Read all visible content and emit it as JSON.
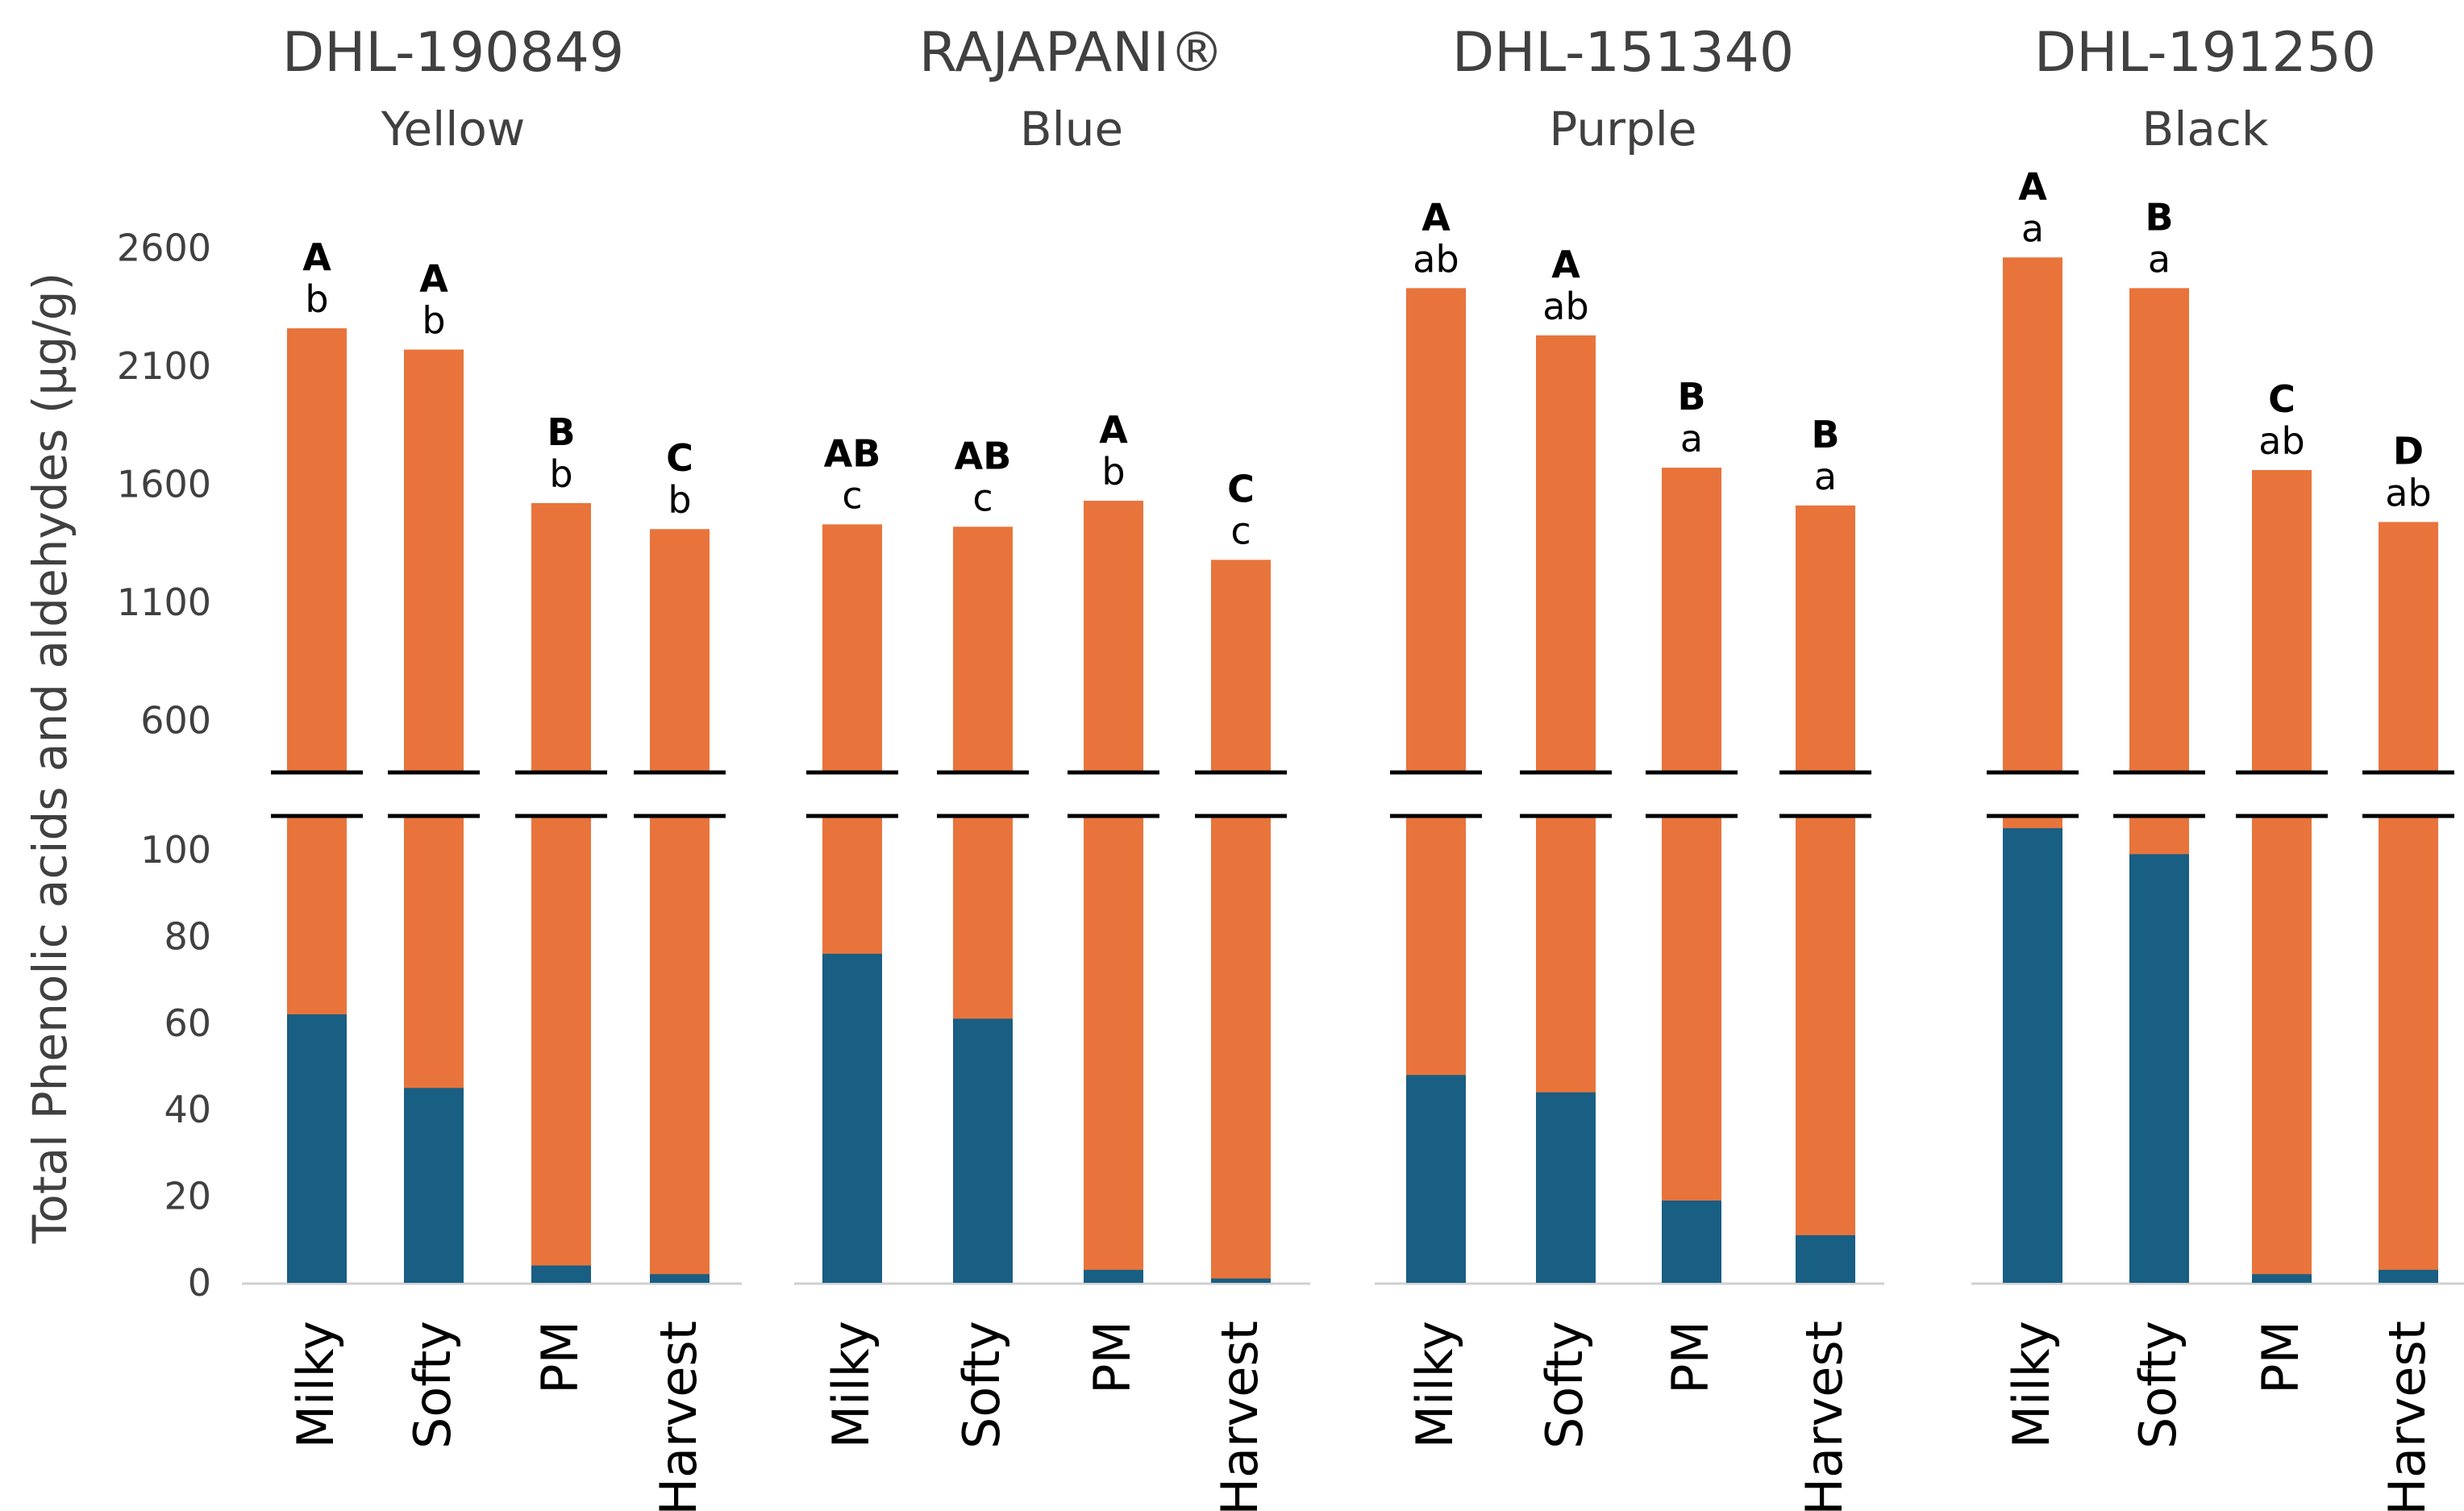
{
  "chart_data": {
    "type": "bar",
    "ylabel": "Total Phenolic acids and aldehydes (µg/g)",
    "axis_break": true,
    "upper_axis": {
      "ticks": [
        600,
        1100,
        1600,
        2100,
        2600
      ],
      "ylim": [
        380,
        2600
      ]
    },
    "lower_axis": {
      "ticks": [
        0,
        20,
        40,
        60,
        80,
        100
      ],
      "ylim": [
        0,
        108
      ]
    },
    "categories": [
      "Milky",
      "Softy",
      "PM",
      "Harvest"
    ],
    "series_colors": {
      "total": "#E8743B",
      "inner_component": "#195E83"
    },
    "panels": [
      {
        "title": "DHL-190849",
        "subtitle": "Yellow",
        "total": [
          2260,
          2170,
          1520,
          1410
        ],
        "inner_component": [
          62,
          45,
          4,
          2
        ],
        "letters_upper": [
          "A",
          "A",
          "B",
          "C"
        ],
        "letters_lower": [
          "b",
          "b",
          "b",
          "b"
        ]
      },
      {
        "title": "RAJAPANI®",
        "subtitle": "Blue",
        "total": [
          1430,
          1420,
          1530,
          1280
        ],
        "inner_component": [
          76,
          61,
          3,
          1
        ],
        "letters_upper": [
          "AB",
          "AB",
          "A",
          "C"
        ],
        "letters_lower": [
          "c",
          "c",
          "b",
          "c"
        ]
      },
      {
        "title": "DHL-151340",
        "subtitle": "Purple",
        "total": [
          2430,
          2230,
          1670,
          1510
        ],
        "inner_component": [
          48,
          44,
          19,
          11
        ],
        "letters_upper": [
          "A",
          "A",
          "B",
          "B"
        ],
        "letters_lower": [
          "ab",
          "ab",
          "a",
          "a"
        ]
      },
      {
        "title": "DHL-191250",
        "subtitle": "Black",
        "total": [
          2560,
          2430,
          1660,
          1440
        ],
        "inner_component": [
          105,
          99,
          2,
          3
        ],
        "letters_upper": [
          "A",
          "B",
          "C",
          "D"
        ],
        "letters_lower": [
          "a",
          "a",
          "ab",
          "ab"
        ]
      }
    ]
  }
}
